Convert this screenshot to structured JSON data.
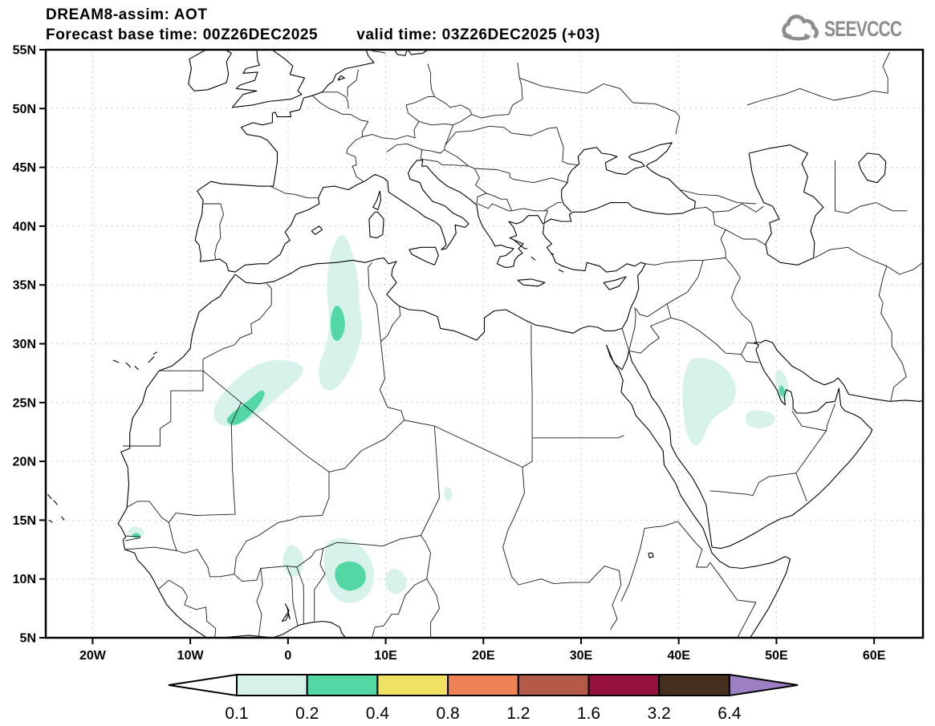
{
  "header": {
    "title": "DREAM8-assim: AOT",
    "forecast": "Forecast base time: 00Z26DEC2025",
    "valid": "valid time: 03Z26DEC2025 (+03)",
    "logo_text": "SEEVCCC"
  },
  "map_axes": {
    "lat_ticks": [
      {
        "value": 55,
        "label": "55N"
      },
      {
        "value": 50,
        "label": "50N"
      },
      {
        "value": 45,
        "label": "45N"
      },
      {
        "value": 40,
        "label": "40N"
      },
      {
        "value": 35,
        "label": "35N"
      },
      {
        "value": 30,
        "label": "30N"
      },
      {
        "value": 25,
        "label": "25N"
      },
      {
        "value": 20,
        "label": "20N"
      },
      {
        "value": 15,
        "label": "15N"
      },
      {
        "value": 10,
        "label": "10N"
      },
      {
        "value": 5,
        "label": "5N"
      }
    ],
    "lon_ticks": [
      {
        "value": -20,
        "label": "20W"
      },
      {
        "value": -10,
        "label": "10W"
      },
      {
        "value": 0,
        "label": "0"
      },
      {
        "value": 10,
        "label": "10E"
      },
      {
        "value": 20,
        "label": "20E"
      },
      {
        "value": 30,
        "label": "30E"
      },
      {
        "value": 40,
        "label": "40E"
      },
      {
        "value": 50,
        "label": "50E"
      },
      {
        "value": 60,
        "label": "60E"
      }
    ]
  },
  "colorbar": {
    "labels": [
      "0.1",
      "0.2",
      "0.4",
      "0.8",
      "1.2",
      "1.6",
      "3.2",
      "6.4"
    ],
    "segment_colors": [
      "#d6f2ea",
      "#52d7a5",
      "#f1e163",
      "#ee8257",
      "#b35a49",
      "#97113f",
      "#44301c"
    ],
    "underflow_color": "#ffffff",
    "overflow_color": "#9c80c2"
  },
  "chart_data": {
    "type": "map_contour",
    "model": "DREAM8-assim",
    "variable": "AOT",
    "base_time": "00Z26DEC2025",
    "valid_time": "03Z26DEC2025",
    "forecast_hour": "+03",
    "extent": {
      "lon_min": -24.8,
      "lon_max": 65,
      "lat_min": 5,
      "lat_max": 55
    },
    "grid": {
      "lat_step": 5,
      "lon_step": 10,
      "style": "dotted"
    },
    "levels": [
      0.1,
      0.2,
      0.4,
      0.8,
      1.2,
      1.6,
      3.2,
      6.4
    ],
    "region_colors": {
      "0.1-0.2": "#d6f2ea",
      "0.2-0.4": "#52d7a5"
    },
    "aot_regions": [
      {
        "name": "algeria-plume",
        "level": "0.1-0.2",
        "points": [
          [
            5.6,
            39.6
          ],
          [
            6.6,
            37.9
          ],
          [
            7.2,
            35.4
          ],
          [
            7.3,
            33.2
          ],
          [
            7.7,
            31.2
          ],
          [
            7.1,
            29.1
          ],
          [
            5.9,
            27.1
          ],
          [
            4.6,
            25.9
          ],
          [
            3.4,
            26.2
          ],
          [
            3.0,
            27.9
          ],
          [
            3.9,
            29.7
          ],
          [
            4.3,
            31.7
          ],
          [
            4.0,
            33.9
          ],
          [
            4.0,
            36.1
          ],
          [
            4.6,
            38.4
          ]
        ]
      },
      {
        "name": "algeria-plume-core",
        "level": "0.2-0.4",
        "points": [
          [
            5.0,
            33.4
          ],
          [
            5.7,
            32.7
          ],
          [
            5.9,
            31.3
          ],
          [
            5.3,
            30.2
          ],
          [
            4.6,
            30.3
          ],
          [
            4.3,
            31.5
          ],
          [
            4.5,
            32.8
          ]
        ]
      },
      {
        "name": "mali-algeria",
        "level": "0.1-0.2",
        "points": [
          [
            1.5,
            28.2
          ],
          [
            -0.5,
            28.7
          ],
          [
            -2.5,
            28.5
          ],
          [
            -4.3,
            27.7
          ],
          [
            -6.2,
            26.3
          ],
          [
            -7.5,
            24.9
          ],
          [
            -7.7,
            23.6
          ],
          [
            -6.6,
            22.9
          ],
          [
            -4.9,
            23.1
          ],
          [
            -3.0,
            24.0
          ],
          [
            -1.1,
            25.4
          ],
          [
            0.7,
            26.7
          ],
          [
            1.6,
            27.5
          ]
        ]
      },
      {
        "name": "mali-algeria-core",
        "level": "0.2-0.4",
        "points": [
          [
            -2.8,
            26.1
          ],
          [
            -3.7,
            25.4
          ],
          [
            -4.8,
            24.7
          ],
          [
            -5.9,
            24.0
          ],
          [
            -6.4,
            23.4
          ],
          [
            -5.6,
            23.0
          ],
          [
            -4.5,
            23.4
          ],
          [
            -3.4,
            24.3
          ],
          [
            -2.6,
            25.2
          ],
          [
            -2.3,
            25.9
          ]
        ]
      },
      {
        "name": "nigeria",
        "level": "0.1-0.2",
        "points": [
          [
            3.9,
            13.2
          ],
          [
            5.6,
            13.6
          ],
          [
            7.3,
            13.0
          ],
          [
            8.6,
            11.6
          ],
          [
            8.9,
            10.0
          ],
          [
            8.3,
            8.6
          ],
          [
            6.9,
            7.9
          ],
          [
            5.4,
            8.0
          ],
          [
            4.3,
            8.9
          ],
          [
            3.8,
            10.3
          ],
          [
            3.6,
            11.8
          ]
        ]
      },
      {
        "name": "nigeria-core",
        "level": "0.2-0.4",
        "points": [
          [
            5.0,
            11.2
          ],
          [
            6.3,
            11.6
          ],
          [
            7.6,
            11.2
          ],
          [
            8.1,
            10.2
          ],
          [
            7.6,
            9.3
          ],
          [
            6.3,
            8.9
          ],
          [
            5.2,
            9.3
          ],
          [
            4.7,
            10.3
          ]
        ]
      },
      {
        "name": "togo-burkina",
        "level": "0.1-0.2",
        "points": [
          [
            0.4,
            13.0
          ],
          [
            1.3,
            12.4
          ],
          [
            1.7,
            11.4
          ],
          [
            1.3,
            10.4
          ],
          [
            0.4,
            10.1
          ],
          [
            -0.4,
            10.7
          ],
          [
            -0.6,
            11.8
          ],
          [
            -0.1,
            12.7
          ]
        ]
      },
      {
        "name": "east-nigeria",
        "level": "0.1-0.2",
        "points": [
          [
            11.0,
            11.0
          ],
          [
            12.0,
            10.3
          ],
          [
            12.2,
            9.3
          ],
          [
            11.4,
            8.7
          ],
          [
            10.4,
            8.8
          ],
          [
            9.9,
            9.6
          ],
          [
            10.1,
            10.6
          ]
        ]
      },
      {
        "name": "saudi-arabia",
        "level": "0.1-0.2",
        "points": [
          [
            42.0,
            28.9
          ],
          [
            44.0,
            28.5
          ],
          [
            45.5,
            27.3
          ],
          [
            46.0,
            25.8
          ],
          [
            45.3,
            24.6
          ],
          [
            43.9,
            24.0
          ],
          [
            42.9,
            23.0
          ],
          [
            42.4,
            21.6
          ],
          [
            41.5,
            21.2
          ],
          [
            40.8,
            22.3
          ],
          [
            40.5,
            24.0
          ],
          [
            40.3,
            25.8
          ],
          [
            40.6,
            27.5
          ],
          [
            41.1,
            28.6
          ]
        ]
      },
      {
        "name": "saudi-east",
        "level": "0.1-0.2",
        "points": [
          [
            46.9,
            24.2
          ],
          [
            48.3,
            24.4
          ],
          [
            49.6,
            24.1
          ],
          [
            50.0,
            23.5
          ],
          [
            49.2,
            22.9
          ],
          [
            47.8,
            22.8
          ],
          [
            46.8,
            23.2
          ]
        ]
      },
      {
        "name": "qatar-coast",
        "level": "0.1-0.2",
        "points": [
          [
            50.0,
            27.9
          ],
          [
            50.8,
            27.6
          ],
          [
            51.2,
            26.6
          ],
          [
            51.3,
            25.5
          ],
          [
            50.8,
            24.9
          ],
          [
            50.1,
            25.4
          ],
          [
            49.9,
            26.6
          ]
        ]
      },
      {
        "name": "qatar-core",
        "level": "0.2-0.4",
        "points": [
          [
            50.4,
            26.5
          ],
          [
            50.8,
            26.3
          ],
          [
            50.9,
            25.6
          ],
          [
            50.5,
            25.5
          ],
          [
            50.2,
            26.1
          ]
        ]
      },
      {
        "name": "senegal",
        "level": "0.1-0.2",
        "points": [
          [
            -16.0,
            14.5
          ],
          [
            -15.0,
            14.4
          ],
          [
            -14.6,
            13.9
          ],
          [
            -15.1,
            13.4
          ],
          [
            -16.2,
            13.4
          ],
          [
            -16.5,
            14.0
          ]
        ]
      },
      {
        "name": "senegal-core",
        "level": "0.2-0.4",
        "points": [
          [
            -15.9,
            13.9
          ],
          [
            -15.2,
            13.9
          ],
          [
            -15.1,
            13.5
          ],
          [
            -15.9,
            13.5
          ]
        ]
      },
      {
        "name": "chad-tibesti",
        "level": "0.1-0.2",
        "points": [
          [
            16.2,
            17.9
          ],
          [
            16.7,
            17.7
          ],
          [
            16.8,
            17.0
          ],
          [
            16.4,
            16.5
          ],
          [
            16.0,
            16.9
          ],
          [
            16.0,
            17.5
          ]
        ]
      }
    ]
  }
}
